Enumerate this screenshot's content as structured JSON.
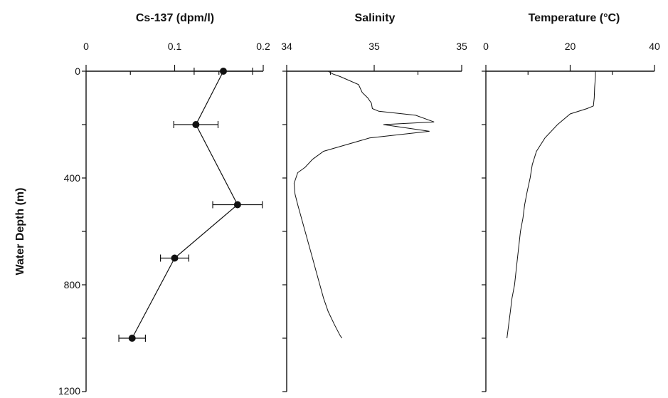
{
  "ylabel": "Water Depth (m)",
  "y_ticks": [
    "0",
    "400",
    "800",
    "1200"
  ],
  "chart_data": [
    {
      "type": "line",
      "title": "Cs-137 (dpm/l)",
      "xlabel": "Cs-137 (dpm/l)",
      "ylabel": "Water Depth (m)",
      "xlim": [
        0,
        0.2
      ],
      "ylim": [
        0,
        1200
      ],
      "y_inverted": true,
      "x_axis_position": "top",
      "x_tick_labels": [
        "0",
        "0.1",
        "0.2"
      ],
      "x_tick_values": [
        0,
        0.1,
        0.2
      ],
      "x": [
        0.155,
        0.124,
        0.171,
        0.1,
        0.052
      ],
      "y": [
        0,
        200,
        500,
        700,
        1000
      ],
      "x_err": [
        0.033,
        0.025,
        0.028,
        0.016,
        0.015
      ],
      "markers": true
    },
    {
      "type": "line",
      "title": "Salinity",
      "xlabel": "Salinity",
      "xlim": [
        34,
        35.9
      ],
      "ylim": [
        0,
        1200
      ],
      "y_inverted": true,
      "x_axis_position": "top",
      "x_tick_labels": [
        "34",
        "35",
        "35"
      ],
      "x_tick_values": [
        34,
        34.95,
        35.9
      ],
      "x": [
        34.45,
        34.5,
        34.58,
        34.78,
        34.82,
        34.88,
        34.92,
        34.93,
        35.0,
        35.4,
        35.6,
        35.05,
        35.55,
        34.9,
        34.6,
        34.4,
        34.28,
        34.2,
        34.12,
        34.08,
        34.09,
        34.12,
        34.16,
        34.2,
        34.24,
        34.28,
        34.32,
        34.36,
        34.4,
        34.45,
        34.52,
        34.58,
        34.6
      ],
      "y": [
        0,
        10,
        20,
        50,
        80,
        100,
        120,
        140,
        150,
        165,
        190,
        200,
        225,
        250,
        280,
        300,
        330,
        360,
        380,
        420,
        460,
        500,
        550,
        600,
        650,
        700,
        750,
        800,
        850,
        900,
        950,
        990,
        1000
      ]
    },
    {
      "type": "line",
      "title": "Temperature (°C)",
      "xlabel": "Temperature (°C)",
      "xlim": [
        0,
        40
      ],
      "ylim": [
        0,
        1200
      ],
      "y_inverted": true,
      "x_axis_position": "top",
      "x_tick_labels": [
        "0",
        "20",
        "40"
      ],
      "x_tick_values": [
        0,
        20,
        40
      ],
      "x": [
        26,
        26,
        25.8,
        25.7,
        25.5,
        24,
        20,
        17,
        14,
        12,
        11,
        10.5,
        9.8,
        9.2,
        8.8,
        8.2,
        7.5,
        6.8,
        6.2,
        5.8,
        5.4,
        5
      ],
      "y": [
        0,
        20,
        60,
        100,
        130,
        140,
        160,
        200,
        250,
        300,
        350,
        400,
        450,
        500,
        550,
        600,
        700,
        800,
        850,
        900,
        950,
        1000
      ]
    }
  ]
}
